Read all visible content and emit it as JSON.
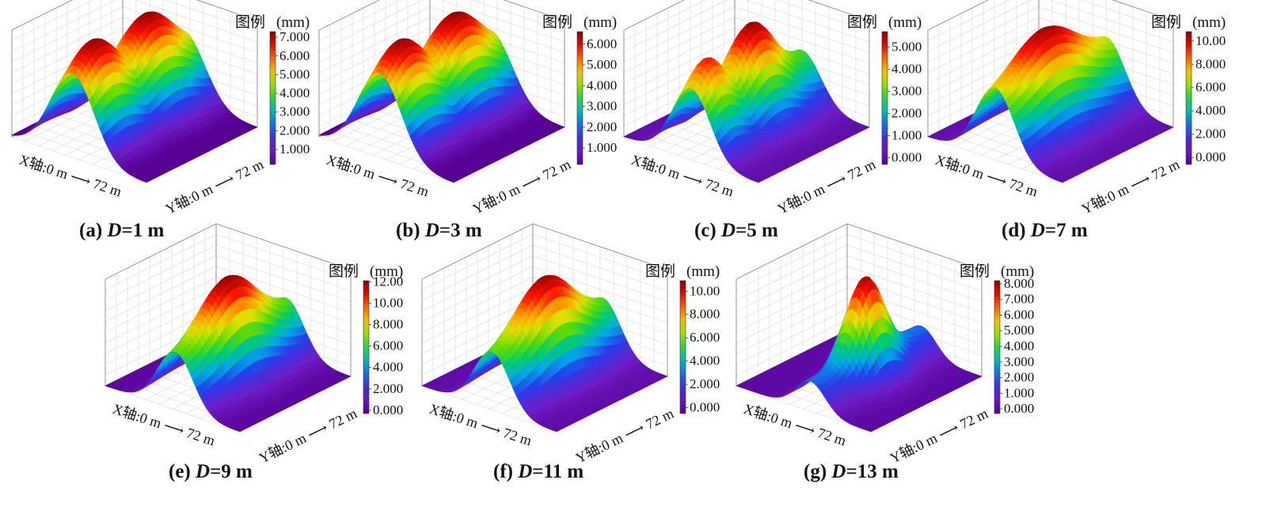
{
  "legend_label": "图例",
  "unit_label": "(mm)",
  "x_axis_label": "X轴:0 m",
  "y_axis_label": "Y轴:0 m",
  "axis_end_label": "72 m",
  "d_symbol": "D",
  "chart_data": [
    {
      "type": "surface",
      "panel": "(a)",
      "D": "=1 m",
      "peak_mm": 7.2,
      "legend_ticks": [
        "7.000",
        "6.000",
        "5.000",
        "4.000",
        "3.000",
        "2.000",
        "1.000"
      ],
      "cmin": 0.2,
      "cmax": 7.3,
      "shape": "twin"
    },
    {
      "type": "surface",
      "panel": "(b)",
      "D": "=3 m",
      "peak_mm": 6.5,
      "legend_ticks": [
        "6.000",
        "5.000",
        "4.000",
        "3.000",
        "2.000",
        "1.000"
      ],
      "cmin": 0.2,
      "cmax": 6.6,
      "shape": "twin"
    },
    {
      "type": "surface",
      "panel": "(c)",
      "D": "=5 m",
      "peak_mm": 5.6,
      "legend_ticks": [
        "5.000",
        "4.000",
        "3.000",
        "2.000",
        "1.000",
        "0.000"
      ],
      "cmin": -0.3,
      "cmax": 5.7,
      "shape": "twin2"
    },
    {
      "type": "surface",
      "panel": "(d)",
      "D": "=7 m",
      "peak_mm": 10.5,
      "legend_ticks": [
        "10.00",
        "8.000",
        "6.000",
        "4.000",
        "2.000",
        "0.000"
      ],
      "cmin": -0.6,
      "cmax": 10.8,
      "shape": "mid"
    },
    {
      "type": "surface",
      "panel": "(e)",
      "D": "=9 m",
      "peak_mm": 12.0,
      "legend_ticks": [
        "12.00",
        "10.00",
        "8.000",
        "6.000",
        "4.000",
        "2.000",
        "0.000"
      ],
      "cmin": -0.3,
      "cmax": 12.1,
      "shape": "mid2"
    },
    {
      "type": "surface",
      "panel": "(f)",
      "D": "=11 m",
      "peak_mm": 10.6,
      "legend_ticks": [
        "10.00",
        "8.000",
        "6.000",
        "4.000",
        "2.000",
        "0.000"
      ],
      "cmin": -0.5,
      "cmax": 10.9,
      "shape": "mid2"
    },
    {
      "type": "surface",
      "panel": "(g)",
      "D": "=13 m",
      "peak_mm": 8.0,
      "legend_ticks": [
        "8.000",
        "7.000",
        "6.000",
        "5.000",
        "4.000",
        "3.000",
        "2.000",
        "1.000",
        "0.000"
      ],
      "cmin": -0.3,
      "cmax": 8.2,
      "shape": "spike"
    }
  ]
}
